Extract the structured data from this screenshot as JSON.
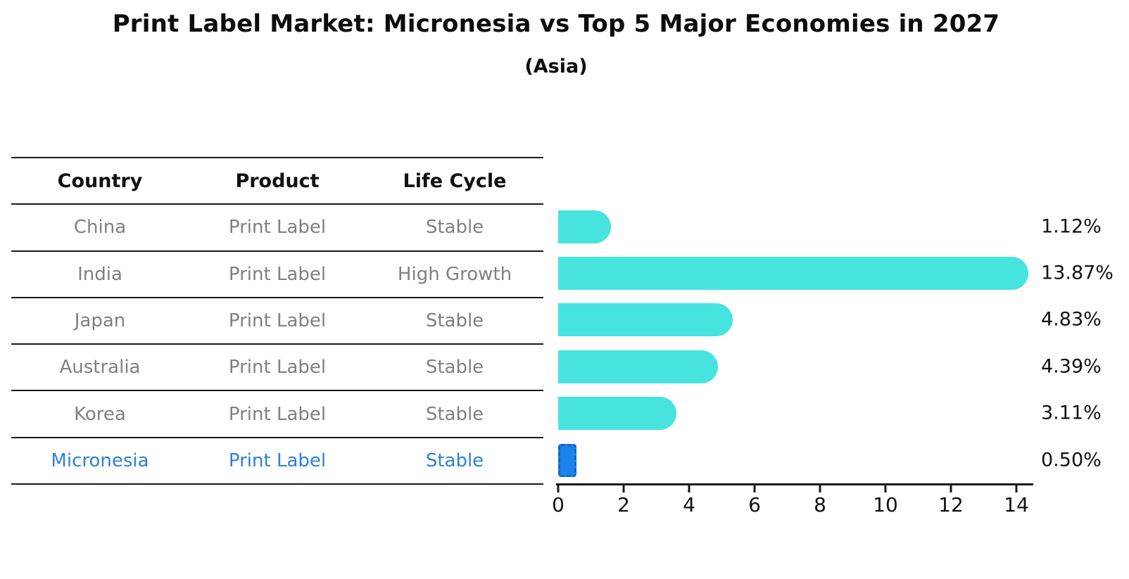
{
  "title": "Print Label Market: Micronesia vs Top 5 Major Economies in 2027",
  "subtitle": "(Asia)",
  "table": {
    "headers": [
      "Country",
      "Product",
      "Life Cycle"
    ],
    "rows": [
      {
        "country": "China",
        "product": "Print Label",
        "life_cycle": "Stable",
        "highlight": false
      },
      {
        "country": "India",
        "product": "Print Label",
        "life_cycle": "High Growth",
        "highlight": false
      },
      {
        "country": "Japan",
        "product": "Print Label",
        "life_cycle": "Stable",
        "highlight": false
      },
      {
        "country": "Australia",
        "product": "Print Label",
        "life_cycle": "Stable",
        "highlight": false
      },
      {
        "country": "Korea",
        "product": "Print Label",
        "life_cycle": "Stable",
        "highlight": false
      },
      {
        "country": "Micronesia",
        "product": "Print Label",
        "life_cycle": "Stable",
        "highlight": true
      }
    ]
  },
  "chart_data": {
    "type": "bar",
    "orientation": "horizontal",
    "title": "Print Label Market: Micronesia vs Top 5 Major Economies in 2027",
    "subtitle": "(Asia)",
    "categories": [
      "China",
      "India",
      "Japan",
      "Australia",
      "Korea",
      "Micronesia"
    ],
    "values": [
      1.12,
      13.87,
      4.83,
      4.39,
      3.11,
      0.5
    ],
    "value_labels": [
      "1.12%",
      "13.87%",
      "4.83%",
      "4.39%",
      "3.11%",
      "0.50%"
    ],
    "x_ticks": [
      "0",
      "2",
      "4",
      "6",
      "8",
      "10",
      "12",
      "14"
    ],
    "xlim": [
      0,
      14.5
    ],
    "grid": false,
    "legend": false,
    "highlight_index": 5,
    "colors": {
      "bar": "#47E4DF",
      "highlight_bar": "#1E82EB",
      "highlight_bar_border": "#1464C8",
      "highlight_text": "#2C82D9",
      "row_text": "#808080",
      "header_text": "#111111",
      "axis": "#1a1a1a"
    }
  }
}
